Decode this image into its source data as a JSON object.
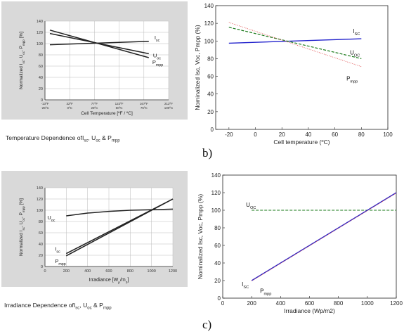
{
  "captions": {
    "top_left_parts": [
      "Temperature Dependence of",
      "I",
      "sc",
      ", U",
      "oc",
      " & P",
      "mpp"
    ],
    "bottom_left_parts": [
      "Irradiance Dependence of",
      "I",
      "sc",
      ", U",
      "oc",
      " & P",
      "mpp"
    ]
  },
  "panel_letters": {
    "b": "b)",
    "c": "c)"
  },
  "colors": {
    "gray_panel": "#d9d9d9",
    "isc_blue": "#2222cc",
    "uoc_green": "#1a7a1a",
    "pmpp_red": "#e05050",
    "dark_line": "#222222"
  },
  "chart_data": [
    {
      "id": "top-left",
      "type": "line",
      "title": "",
      "xlabel": "Cell Temperature [ºF / ºC]",
      "ylabel_parts": [
        "Normalized I",
        "sc",
        ", U",
        "oc",
        ", P",
        "mpp",
        " [%]"
      ],
      "xlim": [
        -25,
        100
      ],
      "ylim": [
        0,
        140
      ],
      "y_ticks": [
        0,
        20,
        40,
        60,
        80,
        100,
        120,
        140
      ],
      "x_ticks": [
        {
          "x": -25,
          "top": "-13ºF",
          "bottom": "-25ºC"
        },
        {
          "x": 0,
          "top": "32ºF",
          "bottom": "0ºC"
        },
        {
          "x": 25,
          "top": "77ºF",
          "bottom": "25ºC"
        },
        {
          "x": 50,
          "top": "122ºF",
          "bottom": "50ºC"
        },
        {
          "x": 75,
          "top": "167ºF",
          "bottom": "75ºC"
        },
        {
          "x": 100,
          "top": "212ºF",
          "bottom": "100ºC"
        }
      ],
      "series": [
        {
          "name_parts": [
            "I",
            "sc"
          ],
          "x": [
            -20,
            80
          ],
          "y": [
            98,
            104
          ]
        },
        {
          "name_parts": [
            "U",
            "oc"
          ],
          "x": [
            -20,
            80
          ],
          "y": [
            118,
            82
          ]
        },
        {
          "name_parts": [
            "P",
            "mpp"
          ],
          "x": [
            -20,
            80
          ],
          "y": [
            124,
            75
          ]
        }
      ]
    },
    {
      "id": "top-right",
      "type": "line",
      "title": "",
      "xlabel_parts": [
        "Cell temperature (",
        "o",
        "C)"
      ],
      "ylabel": "Nominalized Isc, Voc, Pmpp (%)",
      "xlim": [
        -30,
        100
      ],
      "ylim": [
        0,
        140
      ],
      "x_ticks": [
        -20,
        0,
        20,
        40,
        60,
        80,
        100
      ],
      "y_ticks": [
        0,
        20,
        40,
        60,
        80,
        100,
        120,
        140
      ],
      "series": [
        {
          "name_parts": [
            "I",
            "SC"
          ],
          "x": [
            -20,
            80
          ],
          "y": [
            97.5,
            102.5
          ]
        },
        {
          "name_parts": [
            "U",
            "OC"
          ],
          "x": [
            -20,
            80
          ],
          "y": [
            115.5,
            80
          ]
        },
        {
          "name_parts": [
            "P",
            "mpp"
          ],
          "x": [
            -20,
            80
          ],
          "y": [
            121,
            71
          ]
        }
      ]
    },
    {
      "id": "bottom-left",
      "type": "line",
      "title": "",
      "xlabel_parts": [
        "Irradiance [W",
        "p",
        "/m",
        "2",
        "]"
      ],
      "ylabel_parts": [
        "Normalized I",
        "sc",
        ", U",
        "oc",
        ", P",
        "mpp",
        " [%]"
      ],
      "xlim": [
        0,
        1200
      ],
      "ylim": [
        0,
        140
      ],
      "x_ticks": [
        0,
        200,
        400,
        600,
        800,
        1000,
        1200
      ],
      "y_ticks": [
        0,
        20,
        40,
        60,
        80,
        100,
        120,
        140
      ],
      "series": [
        {
          "name_parts": [
            "U",
            "oc"
          ],
          "x": [
            200,
            400,
            600,
            800,
            1000,
            1200
          ],
          "y": [
            90,
            95,
            98,
            100,
            101,
            102
          ]
        },
        {
          "name_parts": [
            "I",
            "sc"
          ],
          "x": [
            200,
            1200
          ],
          "y": [
            23,
            120
          ]
        },
        {
          "name_parts": [
            "P",
            "mpp"
          ],
          "x": [
            200,
            1200
          ],
          "y": [
            19,
            120
          ]
        }
      ]
    },
    {
      "id": "bottom-right",
      "type": "line",
      "title": "",
      "xlabel": "Irradiance (Wp/m2)",
      "ylabel": "Nominalized Isc, Voc, Pmpp (%)",
      "xlim": [
        0,
        1200
      ],
      "ylim": [
        0,
        140
      ],
      "x_ticks": [
        0,
        200,
        400,
        600,
        800,
        1000,
        1200
      ],
      "y_ticks": [
        0,
        20,
        40,
        60,
        80,
        100,
        120,
        140
      ],
      "series": [
        {
          "name_parts": [
            "U",
            "OC"
          ],
          "x": [
            200,
            1200
          ],
          "y": [
            100,
            100
          ]
        },
        {
          "name_parts": [
            "I",
            "SC"
          ],
          "x": [
            200,
            1200
          ],
          "y": [
            20,
            120
          ]
        },
        {
          "name_parts": [
            "P",
            "mpp"
          ],
          "x": [
            200,
            1200
          ],
          "y": [
            19.5,
            119.5
          ]
        }
      ]
    }
  ]
}
